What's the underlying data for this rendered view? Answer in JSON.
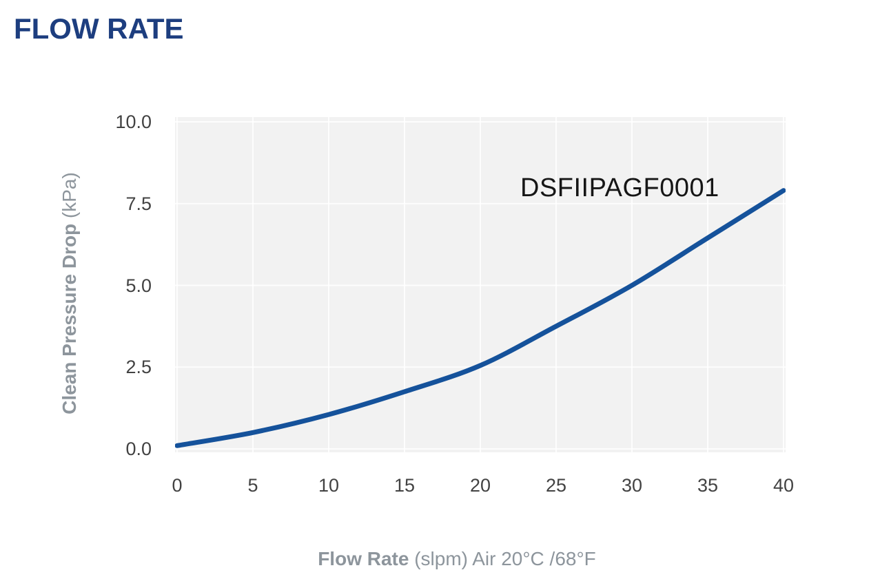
{
  "page": {
    "title": "FLOW RATE"
  },
  "colors": {
    "title": "#1d3e7f",
    "curve": "#15529b",
    "plot_background": "#f2f2f2",
    "gridline": "#ffffff",
    "tick_text": "#424242",
    "axis_label_text": "#8d959c",
    "annotation_text": "#161616"
  },
  "chart_data": {
    "type": "line",
    "title": "FLOW RATE",
    "xlabel_bold": "Flow Rate",
    "xlabel_rest": " (slpm) Air 20°C /68°F",
    "ylabel_bold": "Clean Pressure Drop",
    "ylabel_rest": " (kPa)",
    "annotation": "DSFIIPAGF0001",
    "xlim": [
      0,
      40
    ],
    "ylim": [
      0,
      10
    ],
    "xticks": [
      0,
      5,
      10,
      15,
      20,
      25,
      30,
      35,
      40
    ],
    "xtick_labels": [
      "0",
      "5",
      "10",
      "15",
      "20",
      "25",
      "30",
      "35",
      "40"
    ],
    "yticks": [
      0,
      2.5,
      5,
      7.5,
      10
    ],
    "ytick_labels": [
      "0.0",
      "2.5",
      "5.0",
      "7.5",
      "10.0"
    ],
    "grid": true,
    "legend_position": "none",
    "series": [
      {
        "name": "DSFIIPAGF0001",
        "color": "#15529b",
        "x": [
          0,
          5,
          10,
          15,
          20,
          25,
          30,
          35,
          40
        ],
        "y": [
          0.1,
          0.5,
          1.05,
          1.75,
          2.55,
          3.75,
          5.0,
          6.45,
          7.9
        ]
      }
    ]
  }
}
